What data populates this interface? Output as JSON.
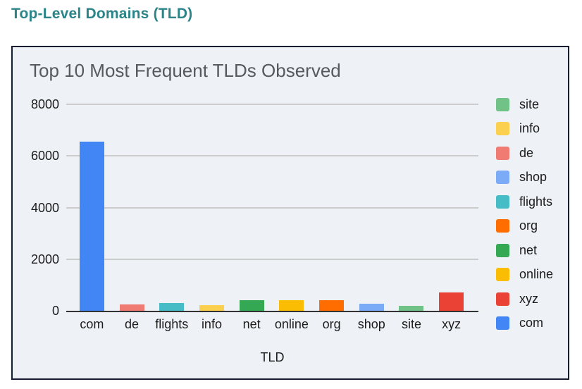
{
  "page": {
    "title": "Top-Level Domains (TLD)"
  },
  "colors": {
    "page_title": "#2a8488",
    "chart_title_text": "#555a5f",
    "card_border": "#171d30",
    "card_background": "#eef1f6",
    "gridline": "#cccccc",
    "axis_line": "#333333",
    "tick_text": "#1c1c1c"
  },
  "chart_data": {
    "type": "bar",
    "title": "Top 10 Most Frequent TLDs Observed",
    "xlabel": "TLD",
    "ylabel": "",
    "ylim": [
      0,
      8000
    ],
    "yticks": [
      0,
      2000,
      4000,
      6000,
      8000
    ],
    "grid": true,
    "legend_position": "right",
    "categories": [
      "com",
      "de",
      "flights",
      "info",
      "net",
      "online",
      "org",
      "shop",
      "site",
      "xyz"
    ],
    "values": [
      6550,
      250,
      290,
      225,
      405,
      410,
      400,
      280,
      180,
      700
    ],
    "colors": {
      "com": "#4285F4",
      "de": "#F07B72",
      "flights": "#46BDC6",
      "info": "#FCD04F",
      "net": "#34A853",
      "online": "#FBBC04",
      "org": "#FF6D01",
      "shop": "#7BAAF7",
      "site": "#71C287",
      "xyz": "#EA4335"
    },
    "legend": [
      {
        "label": "site",
        "color": "#71C287"
      },
      {
        "label": "info",
        "color": "#FCD04F"
      },
      {
        "label": "de",
        "color": "#F07B72"
      },
      {
        "label": "shop",
        "color": "#7BAAF7"
      },
      {
        "label": "flights",
        "color": "#46BDC6"
      },
      {
        "label": "org",
        "color": "#FF6D01"
      },
      {
        "label": "net",
        "color": "#34A853"
      },
      {
        "label": "online",
        "color": "#FBBC04"
      },
      {
        "label": "xyz",
        "color": "#EA4335"
      },
      {
        "label": "com",
        "color": "#4285F4"
      }
    ]
  }
}
